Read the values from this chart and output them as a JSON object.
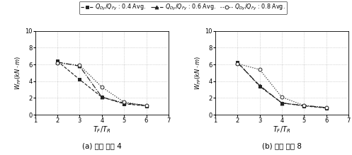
{
  "x": [
    2,
    3,
    4,
    5,
    6
  ],
  "left_series": {
    "s04": [
      6.4,
      4.2,
      2.1,
      1.3,
      1.05
    ],
    "s06": [
      6.3,
      5.8,
      2.1,
      1.4,
      1.1
    ],
    "s08": [
      6.2,
      5.9,
      3.3,
      1.5,
      1.1
    ]
  },
  "right_series": {
    "s04": [
      6.3,
      3.4,
      1.4,
      1.05,
      0.8
    ],
    "s06": [
      6.2,
      3.5,
      1.4,
      1.1,
      0.85
    ],
    "s08": [
      6.1,
      5.4,
      2.1,
      1.1,
      0.85
    ]
  },
  "xlim": [
    1,
    7
  ],
  "ylim": [
    0,
    10
  ],
  "xlabel": "$T_F/T_R$",
  "ylabel": "$W_{FP}(kN\\cdot m)$",
  "legend_labels": [
    "-□- $Q_{Dy}/Q_{Fy}$ : 0.4 Avg.",
    "△ $Q_{Dy}/Q_{Fy}$ : 0.6 Avg.",
    "-O- $Q_{Dy}/Q_{Fy}$ : 0.8 Avg."
  ],
  "subtitle_left": "(a) 변형 비율 4",
  "subtitle_right": "(b) 변형 비율 8",
  "yticks": [
    0,
    2,
    4,
    6,
    8,
    10
  ],
  "xticks": [
    1,
    2,
    3,
    4,
    5,
    6,
    7
  ],
  "line_color": "#222222",
  "linestyles": [
    "--",
    "-.",
    ":"
  ],
  "markers": [
    "s",
    "^",
    "o"
  ],
  "marker_fills": [
    "#222222",
    "#222222",
    "white"
  ]
}
